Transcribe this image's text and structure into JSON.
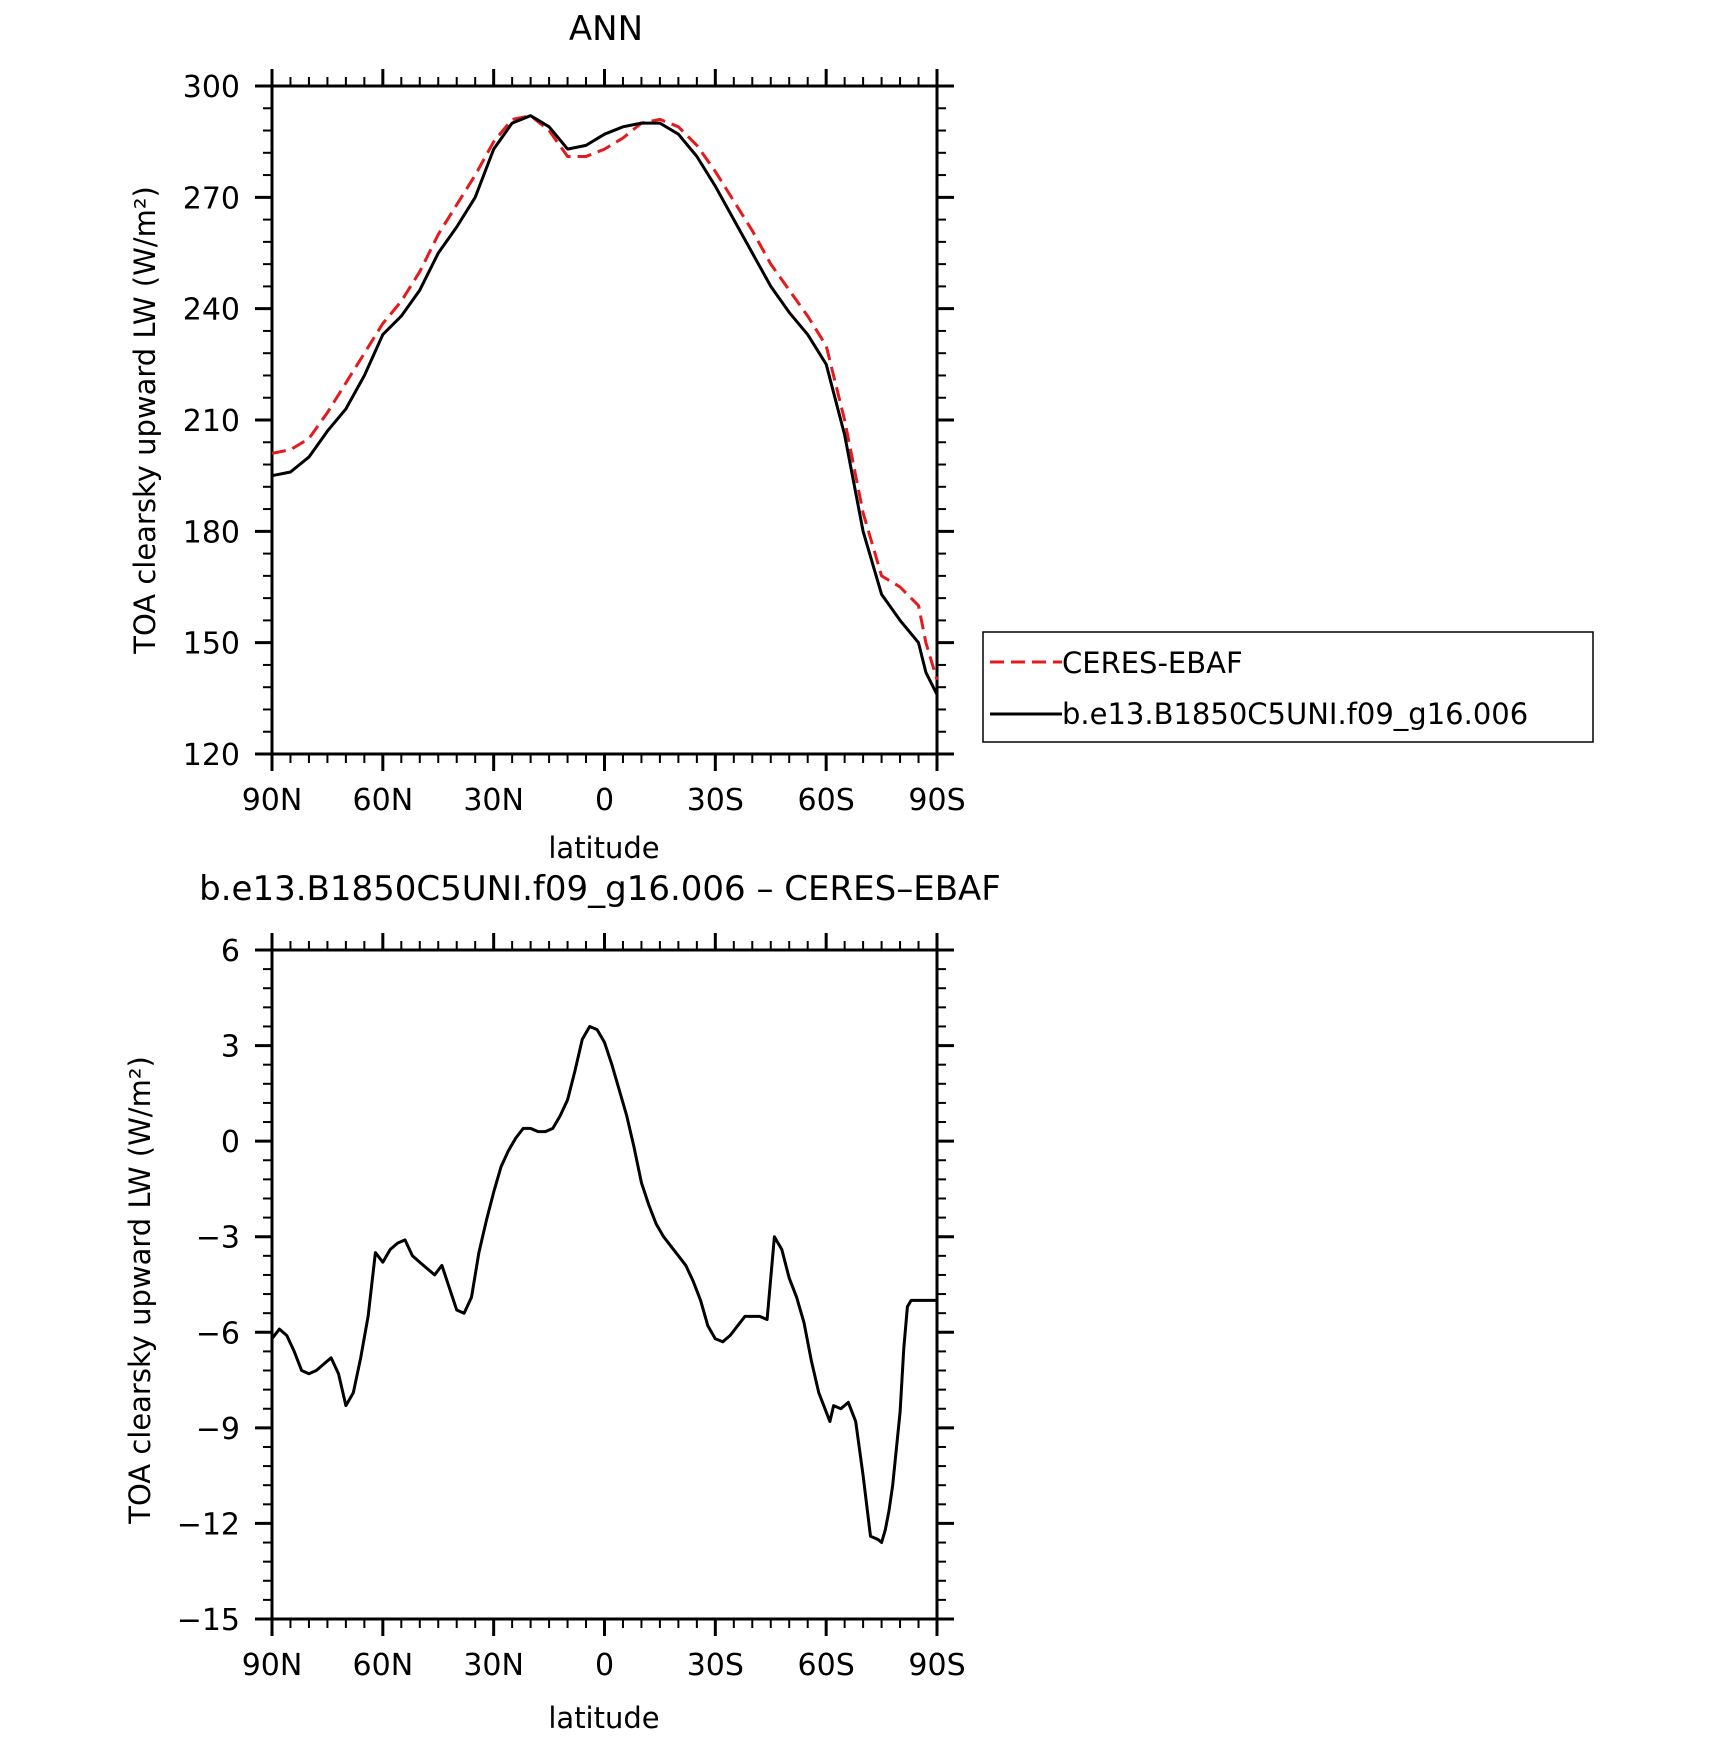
{
  "chart_data": [
    {
      "type": "line",
      "title": "ANN",
      "xlabel": "latitude",
      "ylabel": "TOA clearsky upward LW (W/m²)",
      "xlim": [
        90,
        -90
      ],
      "ylim": [
        120,
        300
      ],
      "xticks": [
        90,
        60,
        30,
        0,
        -30,
        -60,
        -90
      ],
      "xtick_labels": [
        "90N",
        "60N",
        "30N",
        "0",
        "30S",
        "60S",
        "90S"
      ],
      "yticks": [
        120,
        150,
        180,
        210,
        240,
        270,
        300
      ],
      "ytick_labels": [
        "120",
        "150",
        "180",
        "210",
        "240",
        "270",
        "300"
      ],
      "legend_position": "right",
      "series": [
        {
          "name": "CERES-EBAF",
          "color": "#e41a1c",
          "dash": "dashed",
          "x": [
            90,
            85,
            80,
            75,
            70,
            65,
            60,
            55,
            50,
            45,
            40,
            35,
            30,
            25,
            20,
            15,
            10,
            5,
            0,
            -5,
            -10,
            -15,
            -20,
            -25,
            -30,
            -35,
            -40,
            -45,
            -50,
            -55,
            -60,
            -65,
            -70,
            -75,
            -80,
            -85,
            -87,
            -90
          ],
          "y": [
            201,
            202,
            205,
            212,
            220,
            228,
            236,
            242,
            250,
            260,
            268,
            276,
            285,
            291,
            292,
            288,
            281,
            281,
            283,
            286,
            290,
            291,
            289,
            284,
            277,
            269,
            261,
            252,
            245,
            238,
            230,
            210,
            185,
            168,
            165,
            160,
            150,
            140
          ]
        },
        {
          "name": "b.e13.B1850C5UNI.f09_g16.006",
          "color": "#000000",
          "dash": "solid",
          "x": [
            90,
            85,
            80,
            75,
            70,
            65,
            60,
            55,
            50,
            45,
            40,
            35,
            30,
            25,
            20,
            15,
            10,
            5,
            0,
            -5,
            -10,
            -15,
            -20,
            -25,
            -30,
            -35,
            -40,
            -45,
            -50,
            -55,
            -60,
            -65,
            -70,
            -75,
            -80,
            -85,
            -87,
            -90
          ],
          "y": [
            195,
            196,
            200,
            207,
            213,
            222,
            233,
            238,
            245,
            255,
            262,
            270,
            283,
            290,
            292,
            289,
            283,
            284,
            287,
            289,
            290,
            290,
            287,
            281,
            273,
            264,
            255,
            246,
            239,
            233,
            225,
            206,
            180,
            163,
            156,
            150,
            142,
            136
          ]
        }
      ]
    },
    {
      "type": "line",
      "title": "b.e13.B1850C5UNI.f09_g16.006 – CERES–EBAF",
      "xlabel": "latitude",
      "ylabel": "TOA clearsky upward LW (W/m²)",
      "xlim": [
        90,
        -90
      ],
      "ylim": [
        -15,
        6
      ],
      "xticks": [
        90,
        60,
        30,
        0,
        -30,
        -60,
        -90
      ],
      "xtick_labels": [
        "90N",
        "60N",
        "30N",
        "0",
        "30S",
        "60S",
        "90S"
      ],
      "yticks": [
        6,
        3,
        0,
        -3,
        -6,
        -9,
        -12,
        -15
      ],
      "ytick_labels": [
        "6",
        "3",
        "0",
        "−3",
        "−6",
        "−9",
        "−12",
        "−15"
      ],
      "series": [
        {
          "color": "#000000",
          "dash": "solid",
          "x": [
            90,
            88,
            86,
            84,
            82,
            80,
            78,
            76,
            74,
            72,
            70,
            68,
            66,
            64,
            62,
            60,
            58,
            56,
            54,
            52,
            50,
            48,
            46,
            44,
            42,
            40,
            38,
            36,
            34,
            32,
            30,
            28,
            26,
            24,
            22,
            20,
            18,
            16,
            14,
            12,
            10,
            8,
            6,
            4,
            2,
            0,
            -2,
            -4,
            -6,
            -8,
            -10,
            -12,
            -14,
            -16,
            -18,
            -20,
            -22,
            -24,
            -26,
            -28,
            -30,
            -32,
            -34,
            -36,
            -38,
            -40,
            -42,
            -44,
            -46,
            -48,
            -50,
            -52,
            -54,
            -56,
            -58,
            -60,
            -61,
            -62,
            -64,
            -66,
            -68,
            -70,
            -72,
            -74,
            -75,
            -76,
            -77,
            -78,
            -80,
            -81,
            -82,
            -83,
            -84,
            -85,
            -86,
            -87,
            -88,
            -89,
            -90
          ],
          "y": [
            -6.2,
            -5.9,
            -6.1,
            -6.6,
            -7.2,
            -7.3,
            -7.2,
            -7.0,
            -6.8,
            -7.3,
            -8.3,
            -7.9,
            -6.8,
            -5.5,
            -3.5,
            -3.8,
            -3.4,
            -3.2,
            -3.1,
            -3.6,
            -3.8,
            -4.0,
            -4.2,
            -3.9,
            -4.6,
            -5.3,
            -5.4,
            -4.9,
            -3.5,
            -2.5,
            -1.6,
            -0.8,
            -0.3,
            0.1,
            0.4,
            0.4,
            0.3,
            0.3,
            0.4,
            0.8,
            1.3,
            2.2,
            3.2,
            3.6,
            3.5,
            3.1,
            2.4,
            1.6,
            0.8,
            -0.2,
            -1.3,
            -2.0,
            -2.6,
            -3.0,
            -3.3,
            -3.6,
            -3.9,
            -4.4,
            -5.0,
            -5.8,
            -6.2,
            -6.3,
            -6.1,
            -5.8,
            -5.5,
            -5.5,
            -5.5,
            -5.6,
            -3.0,
            -3.4,
            -4.3,
            -4.9,
            -5.7,
            -6.9,
            -7.9,
            -8.5,
            -8.8,
            -8.3,
            -8.4,
            -8.2,
            -8.8,
            -10.5,
            -12.4,
            -12.5,
            -12.6,
            -12.2,
            -11.6,
            -10.8,
            -8.5,
            -6.5,
            -5.2,
            -5.0,
            -5.0,
            -5.0,
            -5.0,
            -5.0,
            -5.0,
            -5.0,
            -5.0
          ],
          "note_skip": true
        }
      ]
    }
  ]
}
